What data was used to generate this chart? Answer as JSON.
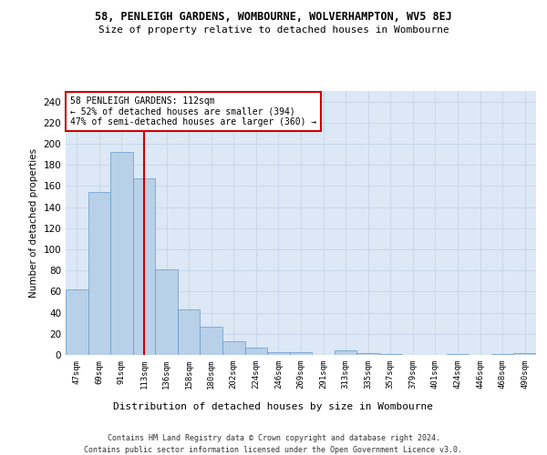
{
  "title_line1": "58, PENLEIGH GARDENS, WOMBOURNE, WOLVERHAMPTON, WV5 8EJ",
  "title_line2": "Size of property relative to detached houses in Wombourne",
  "xlabel": "Distribution of detached houses by size in Wombourne",
  "ylabel": "Number of detached properties",
  "annotation_title": "58 PENLEIGH GARDENS: 112sqm",
  "annotation_line2": "← 52% of detached houses are smaller (394)",
  "annotation_line3": "47% of semi-detached houses are larger (360) →",
  "vline_x_index": 3,
  "categories": [
    "47sqm",
    "69sqm",
    "91sqm",
    "113sqm",
    "136sqm",
    "158sqm",
    "180sqm",
    "202sqm",
    "224sqm",
    "246sqm",
    "269sqm",
    "291sqm",
    "313sqm",
    "335sqm",
    "357sqm",
    "379sqm",
    "401sqm",
    "424sqm",
    "446sqm",
    "468sqm",
    "490sqm"
  ],
  "values": [
    62,
    154,
    192,
    167,
    81,
    43,
    27,
    13,
    7,
    3,
    3,
    0,
    4,
    2,
    1,
    0,
    0,
    1,
    0,
    1,
    2
  ],
  "bar_color": "#b8d0e8",
  "bar_edge_color": "#6699cc",
  "vline_color": "#cc0000",
  "annotation_box_edgecolor": "#cc0000",
  "annotation_box_facecolor": "#ffffff",
  "grid_color": "#c8d8ea",
  "background_color": "#dce8f5",
  "fig_background": "#ffffff",
  "ylim": [
    0,
    250
  ],
  "yticks": [
    0,
    20,
    40,
    60,
    80,
    100,
    120,
    140,
    160,
    180,
    200,
    220,
    240
  ],
  "footer_line1": "Contains HM Land Registry data © Crown copyright and database right 2024.",
  "footer_line2": "Contains public sector information licensed under the Open Government Licence v3.0."
}
